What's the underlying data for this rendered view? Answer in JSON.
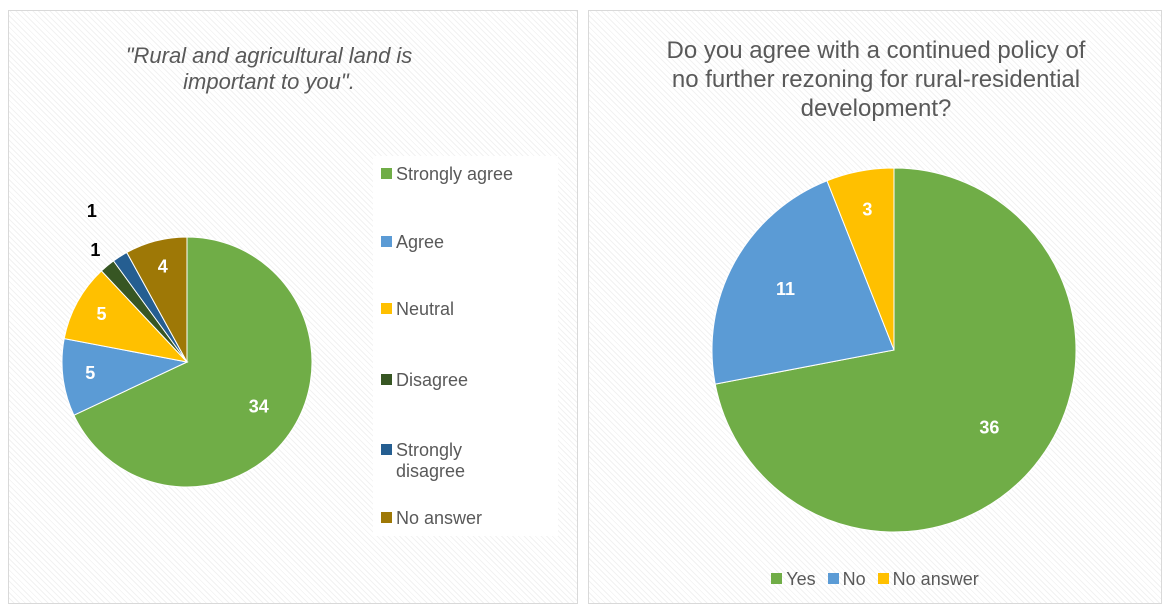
{
  "chart_data": [
    {
      "type": "pie",
      "title": "\"Rural and agricultural land is important to you\".",
      "categories": [
        "Strongly agree",
        "Agree",
        "Neutral",
        "Disagree",
        "Strongly disagree",
        "No answer"
      ],
      "values": [
        34,
        5,
        5,
        1,
        1,
        4
      ],
      "colors": [
        "#70ad47",
        "#5b9bd5",
        "#ffc000",
        "#375623",
        "#255e91",
        "#9e7806"
      ],
      "legend": "right"
    },
    {
      "type": "pie",
      "title": "Do you agree with a continued policy of no further rezoning for rural-residential development?",
      "categories": [
        "Yes",
        "No",
        "No answer"
      ],
      "values": [
        36,
        11,
        3
      ],
      "colors": [
        "#70ad47",
        "#5b9bd5",
        "#ffc000"
      ],
      "legend": "bottom"
    }
  ]
}
